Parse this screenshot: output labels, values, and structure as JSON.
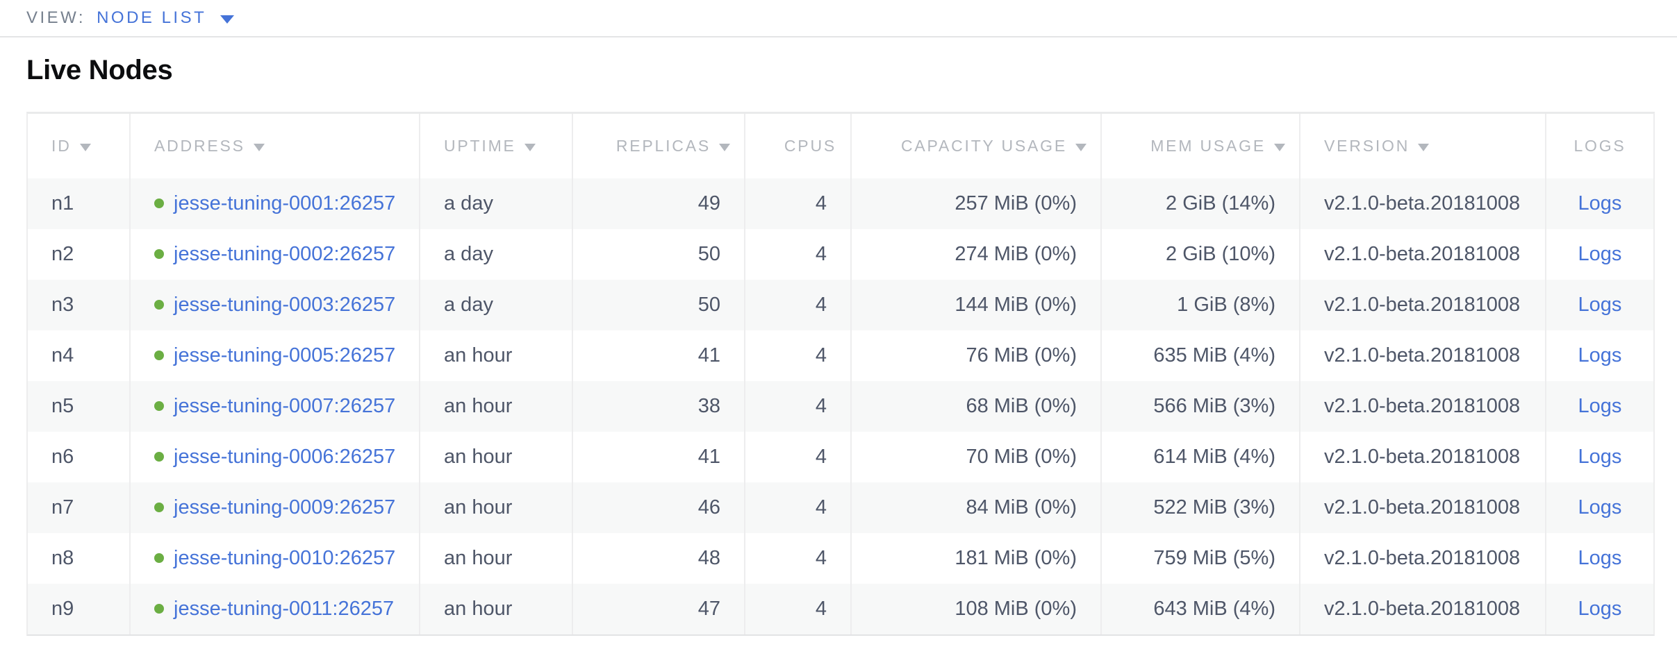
{
  "page": {
    "view_label": "VIEW:",
    "view_value": "NODE LIST",
    "title": "Live Nodes"
  },
  "colors": {
    "link_blue": "#4573d8",
    "status_green": "#6bae43",
    "header_gray": "#b3b7bd",
    "cell_text": "#4e5668",
    "row_alt_background": "#f7f8f8"
  },
  "table": {
    "columns": [
      {
        "key": "id",
        "label": "ID",
        "sortable": true,
        "align": "left"
      },
      {
        "key": "address",
        "label": "ADDRESS",
        "sortable": true,
        "align": "left"
      },
      {
        "key": "uptime",
        "label": "UPTIME",
        "sortable": true,
        "align": "left"
      },
      {
        "key": "replicas",
        "label": "REPLICAS",
        "sortable": true,
        "align": "right"
      },
      {
        "key": "cpus",
        "label": "CPUS",
        "sortable": false,
        "align": "right"
      },
      {
        "key": "capacity_usage",
        "label": "CAPACITY USAGE",
        "sortable": true,
        "align": "right"
      },
      {
        "key": "mem_usage",
        "label": "MEM USAGE",
        "sortable": true,
        "align": "right"
      },
      {
        "key": "version",
        "label": "VERSION",
        "sortable": true,
        "align": "left"
      },
      {
        "key": "logs",
        "label": "LOGS",
        "sortable": false,
        "align": "center"
      }
    ],
    "node_status": "live",
    "rows": [
      {
        "id": "n1",
        "address": "jesse-tuning-0001:26257",
        "uptime": "a day",
        "replicas": "49",
        "cpus": "4",
        "capacity_usage": "257 MiB (0%)",
        "mem_usage": "2 GiB (14%)",
        "version": "v2.1.0-beta.20181008",
        "logs": "Logs"
      },
      {
        "id": "n2",
        "address": "jesse-tuning-0002:26257",
        "uptime": "a day",
        "replicas": "50",
        "cpus": "4",
        "capacity_usage": "274 MiB (0%)",
        "mem_usage": "2 GiB (10%)",
        "version": "v2.1.0-beta.20181008",
        "logs": "Logs"
      },
      {
        "id": "n3",
        "address": "jesse-tuning-0003:26257",
        "uptime": "a day",
        "replicas": "50",
        "cpus": "4",
        "capacity_usage": "144 MiB (0%)",
        "mem_usage": "1 GiB (8%)",
        "version": "v2.1.0-beta.20181008",
        "logs": "Logs"
      },
      {
        "id": "n4",
        "address": "jesse-tuning-0005:26257",
        "uptime": "an hour",
        "replicas": "41",
        "cpus": "4",
        "capacity_usage": "76 MiB (0%)",
        "mem_usage": "635 MiB (4%)",
        "version": "v2.1.0-beta.20181008",
        "logs": "Logs"
      },
      {
        "id": "n5",
        "address": "jesse-tuning-0007:26257",
        "uptime": "an hour",
        "replicas": "38",
        "cpus": "4",
        "capacity_usage": "68 MiB (0%)",
        "mem_usage": "566 MiB (3%)",
        "version": "v2.1.0-beta.20181008",
        "logs": "Logs"
      },
      {
        "id": "n6",
        "address": "jesse-tuning-0006:26257",
        "uptime": "an hour",
        "replicas": "41",
        "cpus": "4",
        "capacity_usage": "70 MiB (0%)",
        "mem_usage": "614 MiB (4%)",
        "version": "v2.1.0-beta.20181008",
        "logs": "Logs"
      },
      {
        "id": "n7",
        "address": "jesse-tuning-0009:26257",
        "uptime": "an hour",
        "replicas": "46",
        "cpus": "4",
        "capacity_usage": "84 MiB (0%)",
        "mem_usage": "522 MiB (3%)",
        "version": "v2.1.0-beta.20181008",
        "logs": "Logs"
      },
      {
        "id": "n8",
        "address": "jesse-tuning-0010:26257",
        "uptime": "an hour",
        "replicas": "48",
        "cpus": "4",
        "capacity_usage": "181 MiB (0%)",
        "mem_usage": "759 MiB (5%)",
        "version": "v2.1.0-beta.20181008",
        "logs": "Logs"
      },
      {
        "id": "n9",
        "address": "jesse-tuning-0011:26257",
        "uptime": "an hour",
        "replicas": "47",
        "cpus": "4",
        "capacity_usage": "108 MiB (0%)",
        "mem_usage": "643 MiB (4%)",
        "version": "v2.1.0-beta.20181008",
        "logs": "Logs"
      }
    ]
  }
}
